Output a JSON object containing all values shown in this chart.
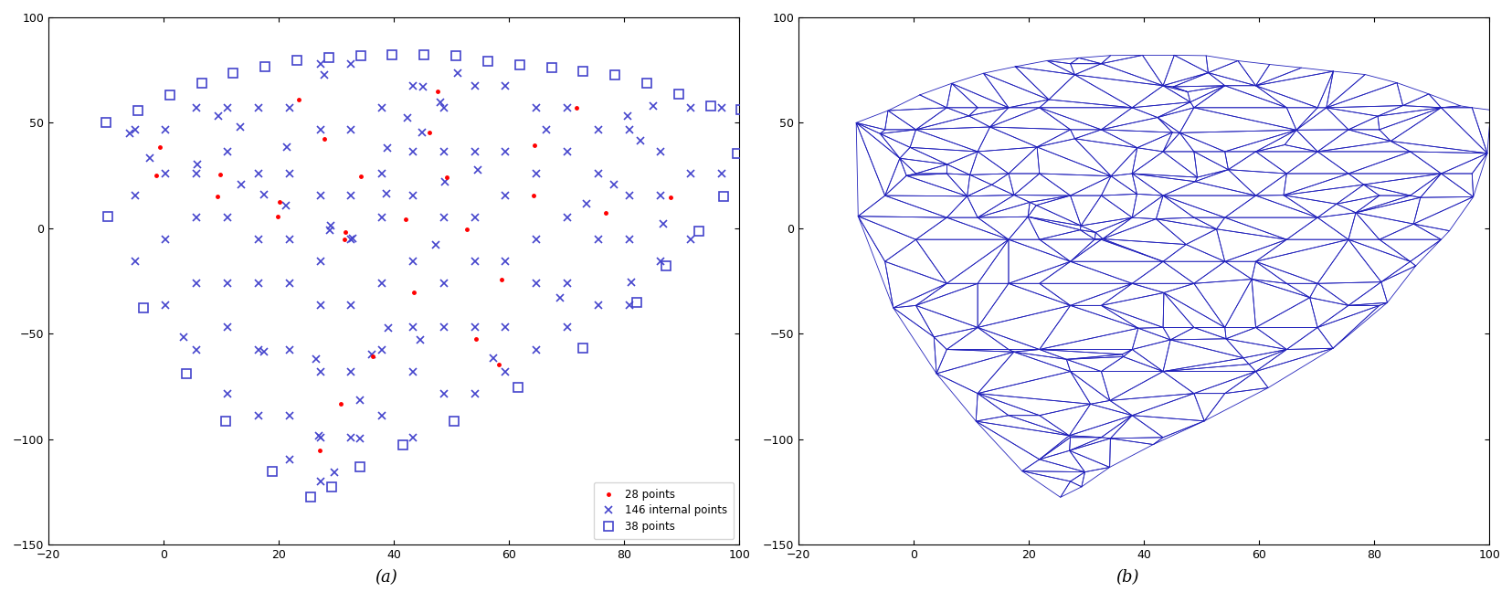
{
  "xlim": [
    -20,
    100
  ],
  "ylim": [
    -150,
    100
  ],
  "title_a": "(a)",
  "title_b": "(b)",
  "legend_labels": [
    "28 points",
    "146 internal points",
    "38 points"
  ],
  "dot_color": "#ff0000",
  "cross_color": "#4444cc",
  "square_color": "#4444cc",
  "line_color": "#2222bb",
  "figsize": [
    16.56,
    6.48
  ],
  "dpi": 100,
  "bg_color": "#f0f0f0"
}
